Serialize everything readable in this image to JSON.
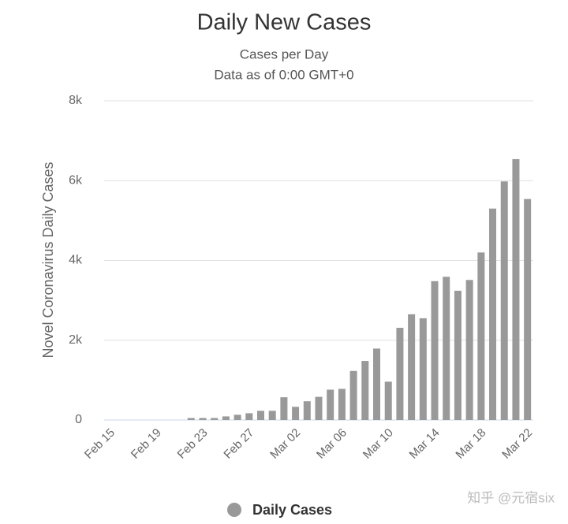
{
  "chart_data": {
    "type": "bar",
    "title": "Daily New Cases",
    "subtitle": [
      "Cases per Day",
      "Data as of 0:00 GMT+0"
    ],
    "y_label": "Novel Coronavirus Daily Cases",
    "categories": [
      "Feb 15",
      null,
      null,
      null,
      "Feb 19",
      null,
      null,
      null,
      "Feb 23",
      null,
      null,
      null,
      "Feb 27",
      null,
      null,
      null,
      "Mar 02",
      null,
      null,
      null,
      "Mar 06",
      null,
      null,
      null,
      "Mar 10",
      null,
      null,
      null,
      "Mar 14",
      null,
      null,
      null,
      "Mar 18",
      null,
      null,
      null,
      "Mar 22"
    ],
    "series": [
      {
        "name": "Daily Cases",
        "color": "#999999",
        "values": [
          0,
          0,
          0,
          0,
          0,
          0,
          0,
          50,
          50,
          50,
          90,
          130,
          170,
          230,
          230,
          570,
          330,
          470,
          580,
          760,
          780,
          1230,
          1480,
          1790,
          960,
          2310,
          2650,
          2550,
          3480,
          3590,
          3240,
          3510,
          4200,
          5300,
          5980,
          6540,
          5540
        ]
      }
    ],
    "ylim": [
      0,
      8000
    ],
    "yticks": [
      0,
      {
        "value": 2000,
        "label": "2k"
      },
      {
        "value": 4000,
        "label": "4k"
      },
      {
        "value": 6000,
        "label": "6k"
      },
      {
        "value": 8000,
        "label": "8k"
      }
    ],
    "grid": true,
    "legend": "bottom"
  },
  "watermark": "知乎 @元宿six"
}
